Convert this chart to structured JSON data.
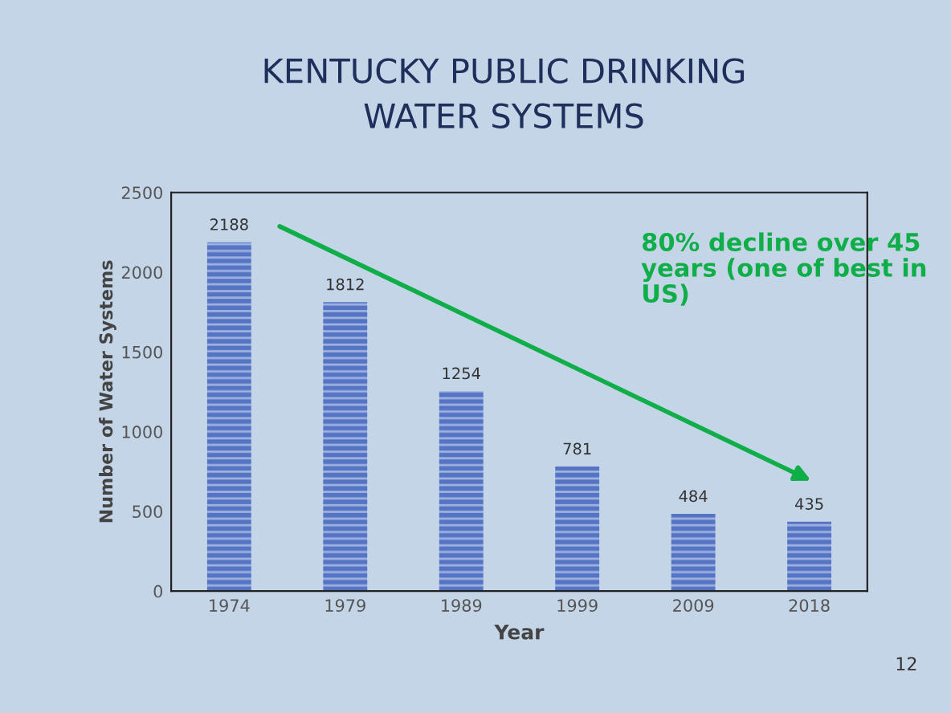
{
  "chart_data": {
    "type": "bar",
    "title": "KENTUCKY PUBLIC DRINKING\nWATER SYSTEMS",
    "xlabel": "Year",
    "ylabel": "Number of Water Systems",
    "categories": [
      "1974",
      "1979",
      "1989",
      "1999",
      "2009",
      "2018"
    ],
    "values": [
      2188,
      1812,
      1254,
      781,
      484,
      435
    ],
    "color": "#5674c4",
    "ylim": [
      0,
      2500
    ],
    "yticks": [
      0,
      500,
      1000,
      1500,
      2000,
      2500
    ],
    "data_labels": true,
    "grid": false,
    "legend": false,
    "annotations": [
      "80% decline over 45\nyears (one of best in\nUS)",
      "12"
    ]
  }
}
